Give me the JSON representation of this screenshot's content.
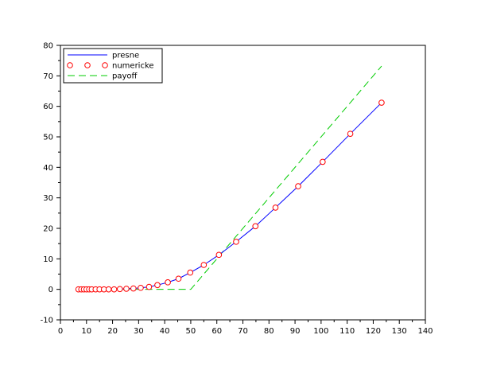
{
  "chart_data": {
    "type": "line",
    "title": "",
    "xlabel": "",
    "ylabel": "",
    "xlim": [
      0,
      140
    ],
    "ylim": [
      -10,
      80
    ],
    "xticks": [
      0,
      10,
      20,
      30,
      40,
      50,
      60,
      70,
      80,
      90,
      100,
      110,
      120,
      130,
      140
    ],
    "yticks": [
      -10,
      0,
      10,
      20,
      30,
      40,
      50,
      60,
      70,
      80
    ],
    "grid": false,
    "legend_position": "top-left",
    "colors": {
      "presne": "#0000ff",
      "numericke": "#ff0000",
      "payoff": "#00cc00"
    },
    "series": [
      {
        "name": "presne",
        "style": "line",
        "x": [
          6.9,
          8,
          9,
          10,
          11,
          12,
          13.5,
          15,
          16.7,
          18.5,
          20.6,
          22.8,
          25.3,
          28,
          30.8,
          34,
          37.2,
          41.2,
          45.3,
          49.8,
          55,
          60.8,
          67.4,
          74.8,
          82.5,
          91.2,
          100.6,
          111.2,
          123.2
        ],
        "y": [
          0,
          0,
          0,
          0,
          0,
          0,
          0,
          0,
          0,
          0,
          0,
          0.1,
          0.2,
          0.3,
          0.5,
          0.8,
          1.4,
          2.3,
          3.5,
          5.5,
          8,
          11.3,
          15.6,
          20.7,
          26.8,
          33.8,
          41.8,
          51,
          61.2
        ]
      },
      {
        "name": "numericke",
        "style": "markers",
        "x": [
          6.9,
          8,
          9,
          10,
          11,
          12,
          13.5,
          15,
          16.7,
          18.5,
          20.6,
          22.8,
          25.3,
          28,
          30.8,
          34,
          37.2,
          41.2,
          45.3,
          49.8,
          55,
          60.8,
          67.4,
          74.8,
          82.5,
          91.2,
          100.6,
          111.2,
          123.2
        ],
        "y": [
          0,
          0,
          0,
          0,
          0,
          0,
          0,
          0,
          0,
          0,
          0,
          0.1,
          0.2,
          0.3,
          0.5,
          0.8,
          1.4,
          2.3,
          3.5,
          5.5,
          8,
          11.3,
          15.6,
          20.7,
          26.8,
          33.8,
          41.8,
          51,
          61.2
        ]
      },
      {
        "name": "payoff",
        "style": "dashed",
        "x": [
          6.9,
          50,
          123.2
        ],
        "y": [
          0,
          0,
          73.2
        ]
      }
    ]
  }
}
